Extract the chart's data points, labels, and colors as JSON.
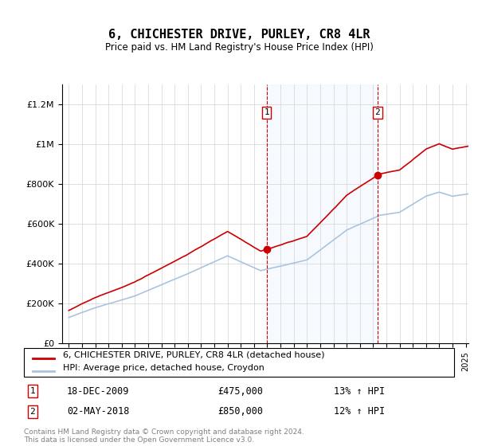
{
  "title": "6, CHICHESTER DRIVE, PURLEY, CR8 4LR",
  "subtitle": "Price paid vs. HM Land Registry's House Price Index (HPI)",
  "ylabel_ticks": [
    "£0",
    "£200K",
    "£400K",
    "£600K",
    "£800K",
    "£1M",
    "£1.2M"
  ],
  "ylim": [
    0,
    1300000
  ],
  "yticks": [
    0,
    200000,
    400000,
    600000,
    800000,
    1000000,
    1200000
  ],
  "sale1_date": "18-DEC-2009",
  "sale1_price": 475000,
  "sale1_label": "1",
  "sale1_pct": "13% ↑ HPI",
  "sale2_date": "02-MAY-2018",
  "sale2_price": 850000,
  "sale2_label": "2",
  "sale2_pct": "12% ↑ HPI",
  "legend_line1": "6, CHICHESTER DRIVE, PURLEY, CR8 4LR (detached house)",
  "legend_line2": "HPI: Average price, detached house, Croydon",
  "footer": "Contains HM Land Registry data © Crown copyright and database right 2024.\nThis data is licensed under the Open Government Licence v3.0.",
  "hpi_color": "#aac4e0",
  "price_color": "#cc0000",
  "shade_color": "#ddeeff",
  "vline_color": "#cc0000",
  "background_color": "#ffffff",
  "x_start_year": 1995,
  "x_end_year": 2025
}
